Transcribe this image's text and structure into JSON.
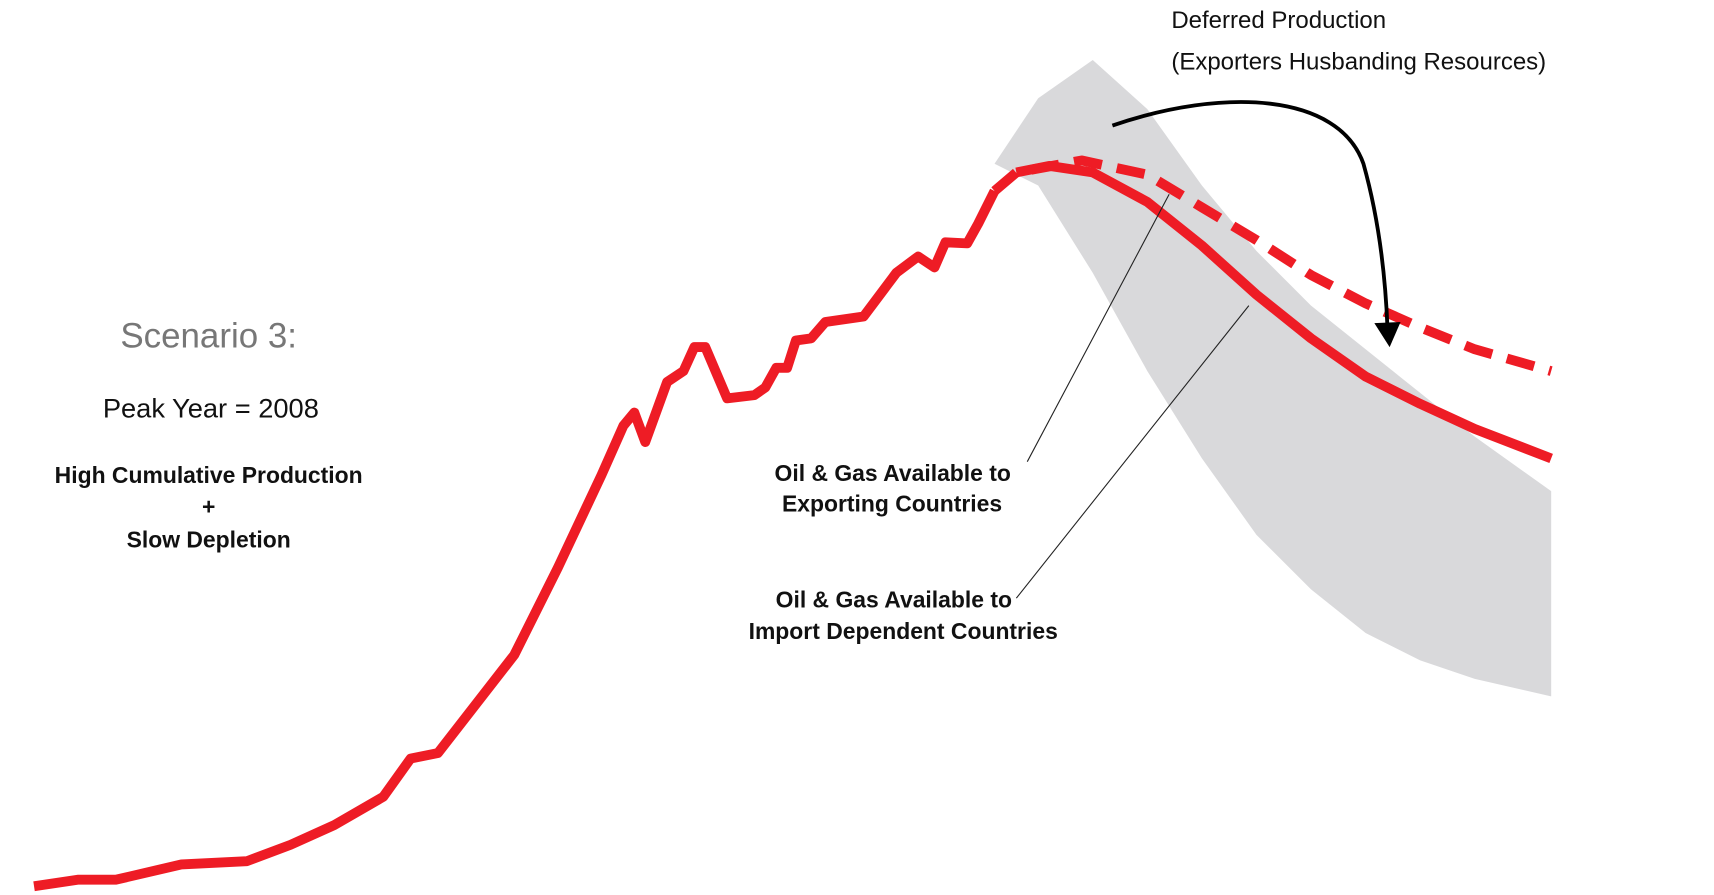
{
  "chart_data": {
    "type": "line",
    "xlim": [
      0,
      139
    ],
    "ylim": [
      0,
      77
    ],
    "band": {
      "color": "#d9d9db",
      "x": [
        88,
        92,
        97,
        102,
        107,
        112,
        117,
        122,
        127,
        132,
        139
      ],
      "upper": [
        67,
        73,
        76.5,
        72,
        65,
        59,
        54,
        50,
        46,
        42,
        37
      ],
      "lower": [
        67,
        65,
        57,
        48,
        40,
        33,
        28,
        24,
        21.5,
        19.8,
        18.2
      ]
    },
    "series": [
      {
        "color": "#ee1c25",
        "dashed": false,
        "x": [
          0,
          4,
          7.5,
          13.5,
          19.5,
          23.5,
          27.5,
          32,
          34.5,
          37,
          44,
          48,
          52,
          54,
          55,
          56,
          58,
          59.5,
          60.5,
          61.5,
          63.5,
          66,
          67,
          68,
          69,
          69.8,
          71.2,
          72.5,
          76,
          79,
          81,
          82.5,
          83.5,
          85.5,
          86.5,
          88
        ],
        "values": [
          0.8,
          1.4,
          1.4,
          2.8,
          3.1,
          4.6,
          6.4,
          9,
          12.5,
          13,
          22,
          30,
          38.5,
          43,
          44.2,
          41.5,
          47,
          48,
          50.2,
          50.2,
          45.5,
          45.8,
          46.5,
          48.3,
          48.3,
          50.8,
          51,
          52.5,
          53,
          57,
          58.5,
          57.5,
          59.8,
          59.7,
          61.5,
          64.5
        ]
      },
      {
        "color": "#ee1c25",
        "dashed": true,
        "x": [
          88,
          90,
          96,
          102,
          107,
          112,
          117,
          122,
          127,
          132,
          139
        ],
        "values": [
          64.5,
          66.2,
          67.3,
          66,
          63,
          60,
          56.8,
          54.2,
          52,
          50,
          48
        ]
      },
      {
        "color": "#ee1c25",
        "dashed": false,
        "x": [
          90,
          93,
          97,
          102,
          107,
          112,
          117,
          122,
          127,
          132,
          139
        ],
        "values": [
          66.2,
          66.8,
          66.2,
          63.5,
          59.5,
          55,
          51,
          47.5,
          45,
          42.7,
          40
        ]
      }
    ],
    "scenario": {
      "title": "Scenario 3:",
      "peak": "Peak Year = 2008",
      "lines": [
        "High Cumulative Production",
        "+",
        "Slow Depletion"
      ]
    },
    "annotations": {
      "deferred": [
        "Deferred Production",
        "(Exporters Husbanding Resources)"
      ],
      "exporting": [
        "Oil & Gas Available to",
        "Exporting Countries"
      ],
      "importing": [
        "Oil & Gas Available to",
        "Import Dependent Countries"
      ]
    }
  }
}
